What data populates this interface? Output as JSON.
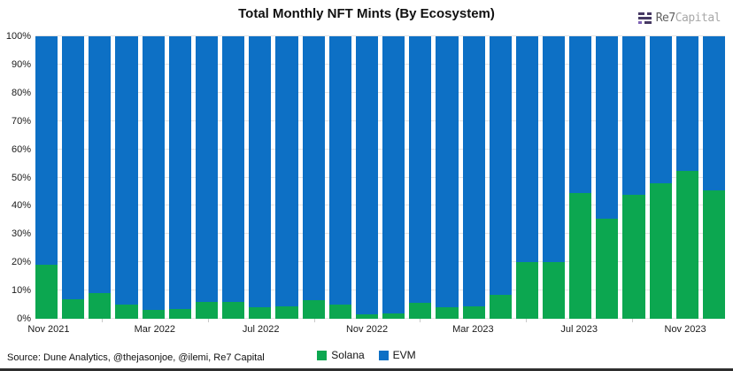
{
  "title": "Total Monthly NFT Mints (By Ecosystem)",
  "logo": {
    "name": "Re7",
    "suffix": "Capital"
  },
  "legend": {
    "solana_label": "Solana",
    "evm_label": "EVM"
  },
  "source": "Source: Dune Analytics, @thejasonjoe, @ilemi, Re7 Capital",
  "colors": {
    "solana_green": "#0ca750",
    "evm_blue": "#0d70c5",
    "gridline": "#e4e4e4",
    "logo_dark": "#463963",
    "logo_purple": "#7e62b4"
  },
  "chart_data": {
    "type": "bar",
    "stacked": true,
    "title": "Total Monthly NFT Mints (By Ecosystem)",
    "xlabel": "",
    "ylabel": "",
    "ylim": [
      0,
      100
    ],
    "y_tick_step": 10,
    "y_tick_suffix": "%",
    "grid": true,
    "legend_position": "bottom",
    "categories": [
      "Nov 2021",
      "Dec 2021",
      "Jan 2022",
      "Feb 2022",
      "Mar 2022",
      "Apr 2022",
      "May 2022",
      "Jun 2022",
      "Jul 2022",
      "Aug 2022",
      "Sep 2022",
      "Oct 2022",
      "Nov 2022",
      "Dec 2022",
      "Jan 2023",
      "Feb 2023",
      "Mar 2023",
      "Apr 2023",
      "May 2023",
      "Jun 2023",
      "Jul 2023",
      "Aug 2023",
      "Sep 2023",
      "Oct 2023",
      "Nov 2023",
      "Dec 2023"
    ],
    "x_tick_labels": [
      "Nov 2021",
      "Mar 2022",
      "Jul 2022",
      "Nov 2022",
      "Mar 2023",
      "Jul 2023",
      "Nov 2023"
    ],
    "x_minor_tick_indices": [
      2,
      6,
      10,
      14,
      18,
      22
    ],
    "series": [
      {
        "name": "Solana",
        "color": "#0ca750",
        "values": [
          19,
          7,
          9,
          5,
          3,
          3.5,
          6,
          6,
          4,
          4.5,
          6.5,
          5,
          1.5,
          2,
          5.5,
          4,
          4.5,
          8.5,
          20,
          20,
          44.5,
          35.5,
          44,
          48,
          52.5,
          45.5
        ]
      },
      {
        "name": "EVM",
        "color": "#0d70c5",
        "values": [
          81,
          93,
          91,
          95,
          97,
          96.5,
          94,
          94,
          96,
          95.5,
          93.5,
          95,
          98.5,
          98,
          94.5,
          96,
          95.5,
          91.5,
          80,
          80,
          55.5,
          64.5,
          56,
          52,
          47.5,
          54.5
        ]
      }
    ]
  }
}
